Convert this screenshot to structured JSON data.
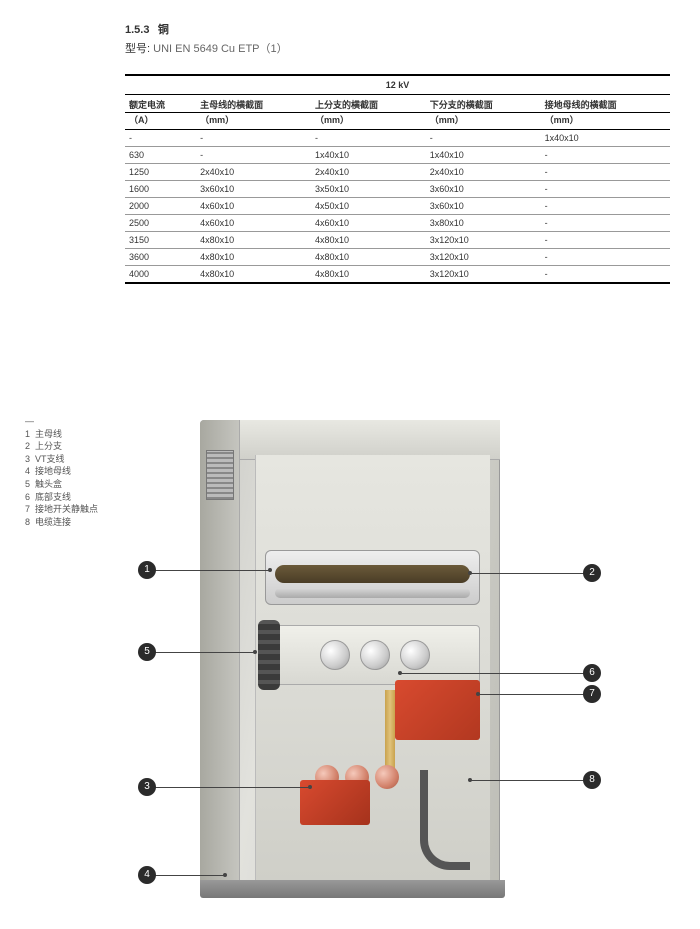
{
  "header": {
    "section_num": "1.5.3",
    "section_title": "铜",
    "model_label": "型号:",
    "model_value": "UNI EN 5649 Cu ETP（1）"
  },
  "table": {
    "voltage_header": "12 kV",
    "columns": [
      {
        "title": "额定电流",
        "unit": "（A）"
      },
      {
        "title": "主母线的横截面",
        "unit": "（mm）"
      },
      {
        "title": "上分支的横截面",
        "unit": "（mm）"
      },
      {
        "title": "下分支的横截面",
        "unit": "（mm）"
      },
      {
        "title": "接地母线的横截面",
        "unit": "（mm）"
      }
    ],
    "rows": [
      [
        "-",
        "-",
        "-",
        "-",
        "1x40x10"
      ],
      [
        "630",
        "-",
        "1x40x10",
        "1x40x10",
        "-"
      ],
      [
        "1250",
        "2x40x10",
        "2x40x10",
        "2x40x10",
        "-"
      ],
      [
        "1600",
        "3x60x10",
        "3x50x10",
        "3x60x10",
        "-"
      ],
      [
        "2000",
        "4x60x10",
        "4x50x10",
        "3x60x10",
        "-"
      ],
      [
        "2500",
        "4x60x10",
        "4x60x10",
        "3x80x10",
        "-"
      ],
      [
        "3150",
        "4x80x10",
        "4x80x10",
        "3x120x10",
        "-"
      ],
      [
        "3600",
        "4x80x10",
        "4x80x10",
        "3x120x10",
        "-"
      ],
      [
        "4000",
        "4x80x10",
        "4x80x10",
        "3x120x10",
        "-"
      ]
    ]
  },
  "legend": [
    {
      "n": "1",
      "text": "主母线"
    },
    {
      "n": "2",
      "text": "上分支"
    },
    {
      "n": "3",
      "text": "VT支线"
    },
    {
      "n": "4",
      "text": "接地母线"
    },
    {
      "n": "5",
      "text": "触头盒"
    },
    {
      "n": "6",
      "text": "底部支线"
    },
    {
      "n": "7",
      "text": "接地开关静触点"
    },
    {
      "n": "8",
      "text": "电缆连接"
    }
  ],
  "callouts": {
    "c1": "1",
    "c2": "2",
    "c3": "3",
    "c4": "4",
    "c5": "5",
    "c6": "6",
    "c7": "7",
    "c8": "8"
  },
  "colors": {
    "text": "#333333",
    "subtext": "#666666",
    "rule_heavy": "#000000",
    "rule_light": "#999999",
    "cabinet": "#d5d5cf",
    "accent_red": "#d84a2f",
    "callout_bg": "#2b2b2b"
  }
}
